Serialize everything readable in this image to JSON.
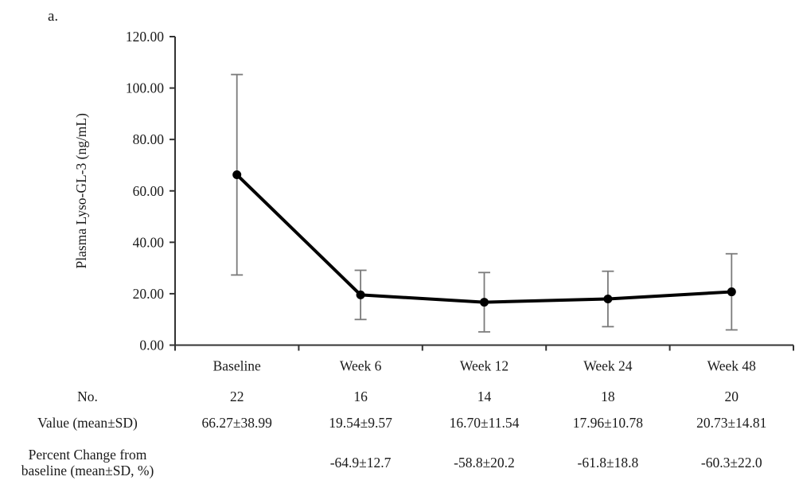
{
  "panel_label": "a.",
  "chart_data": {
    "type": "line",
    "title": "",
    "xlabel": "",
    "ylabel": "Plasma Lyso-GL-3 (ng/mL)",
    "categories": [
      "Baseline",
      "Week 6",
      "Week 12",
      "Week 24",
      "Week 48"
    ],
    "series": [
      {
        "name": "Plasma Lyso-GL-3 (ng/mL)",
        "means": [
          66.27,
          19.54,
          16.7,
          17.96,
          20.73
        ],
        "sd": [
          38.99,
          9.57,
          11.54,
          10.78,
          14.81
        ]
      }
    ],
    "ylim": [
      0,
      120
    ],
    "y_tick_step": 20,
    "y_tick_labels": [
      "0.00",
      "20.00",
      "40.00",
      "60.00",
      "80.00",
      "100.00",
      "120.00"
    ],
    "grid": false,
    "legend": false,
    "error_bars": "sd",
    "colors": {
      "line": "#000000",
      "marker": "#000000",
      "error_bar": "#7b7b7b",
      "axis": "#333333",
      "text": "#1a1a1a"
    }
  },
  "table": {
    "rows": [
      {
        "label": "No.",
        "values": [
          "22",
          "16",
          "14",
          "18",
          "20"
        ]
      },
      {
        "label": "Value (mean±SD)",
        "values": [
          "66.27±38.99",
          "19.54±9.57",
          "16.70±11.54",
          "17.96±10.78",
          "20.73±14.81"
        ]
      },
      {
        "label": "Percent Change from baseline (mean±SD, %)",
        "values": [
          "",
          "-64.9±12.7",
          "-58.8±20.2",
          "-61.8±18.8",
          "-60.3±22.0"
        ]
      }
    ]
  }
}
